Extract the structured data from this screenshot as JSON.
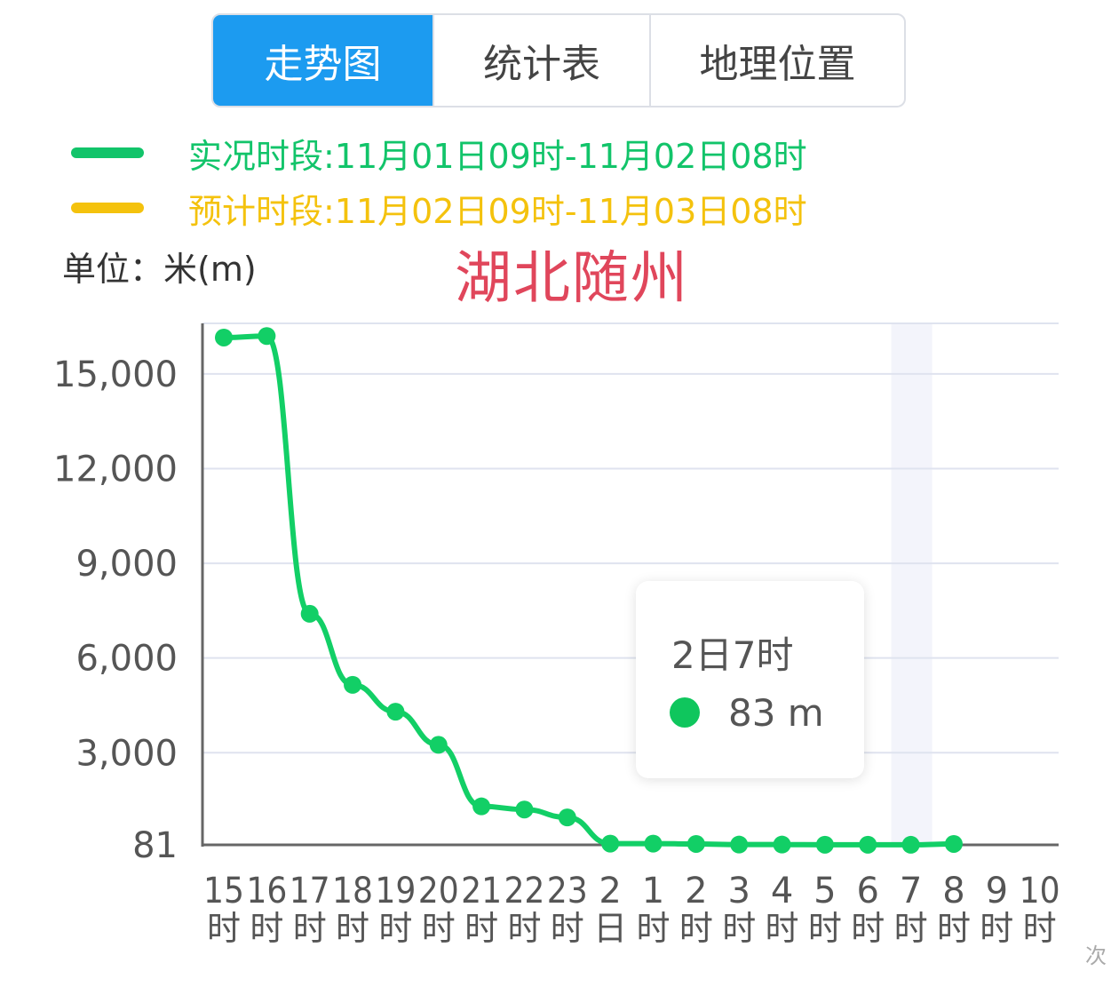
{
  "tabs": [
    {
      "label": "走势图",
      "active": true
    },
    {
      "label": "统计表",
      "active": false
    },
    {
      "label": "地理位置",
      "active": false
    }
  ],
  "legend": [
    {
      "text": "实况时段:11月01日09时-11月02日08时",
      "color": "#12c46a"
    },
    {
      "text": "预计时段:11月02日09时-11月03日08时",
      "color": "#f4c20d"
    }
  ],
  "unit_label": "单位：米(m)",
  "overlay_title": "湖北随州",
  "tooltip": {
    "title": "2日7时",
    "value": "83 m",
    "dot_color": "#0fc65d"
  },
  "corner_text": "次",
  "colors": {
    "line": "#12cf66",
    "grid": "#dfe3ef",
    "axis": "#666666",
    "highlight": "#f3f4fb"
  },
  "chart_data": {
    "type": "line",
    "ylabel": "单位：米(m)",
    "y_ticks": [
      "81",
      "3,000",
      "6,000",
      "9,000",
      "12,000",
      "15,000"
    ],
    "y_tick_values": [
      81,
      3000,
      6000,
      9000,
      12000,
      15000
    ],
    "ylim": [
      81,
      16600
    ],
    "categories": [
      [
        "15",
        "时"
      ],
      [
        "16",
        "时"
      ],
      [
        "17",
        "时"
      ],
      [
        "18",
        "时"
      ],
      [
        "19",
        "时"
      ],
      [
        "20",
        "时"
      ],
      [
        "21",
        "时"
      ],
      [
        "22",
        "时"
      ],
      [
        "23",
        "时"
      ],
      [
        "2",
        "日"
      ],
      [
        "1",
        "时"
      ],
      [
        "2",
        "时"
      ],
      [
        "3",
        "时"
      ],
      [
        "4",
        "时"
      ],
      [
        "5",
        "时"
      ],
      [
        "6",
        "时"
      ],
      [
        "7",
        "时"
      ],
      [
        "8",
        "时"
      ],
      [
        "9",
        "时"
      ],
      [
        "10",
        "时"
      ]
    ],
    "series": [
      {
        "values": [
          16150,
          16200,
          7400,
          5150,
          4300,
          3250,
          1300,
          1200,
          950,
          120,
          120,
          110,
          90,
          90,
          85,
          85,
          83,
          110,
          null,
          null
        ]
      }
    ],
    "highlight_index": 16,
    "grid": true
  }
}
